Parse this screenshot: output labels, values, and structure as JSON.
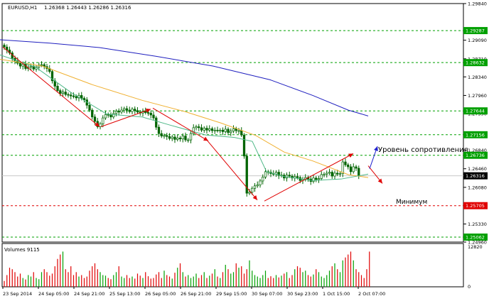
{
  "header": {
    "symbol": "EURUSD,H1",
    "ohlc": "1.26368 1.26443 1.26286 1.26316"
  },
  "volumes_label": "Volumes 9115",
  "annotations": {
    "resistance": "Уровень сопротивления",
    "minimum": "Минимум"
  },
  "colors": {
    "background": "#ffffff",
    "candle": "#006400",
    "ma_slow": "#1f1fbf",
    "ma_mid": "#f0b030",
    "ma_fast": "#4fb888",
    "level_line_green": "#00a000",
    "level_line_red": "#e00000",
    "trend_arrow": "#e00000",
    "up_arrow": "#2020d0",
    "volume_bar": "#e00000",
    "volume_bar_up": "#00a000",
    "price_badge_green": "#00a000",
    "price_badge_current": "#000000",
    "price_badge_red": "#e00000"
  },
  "chart_data": {
    "type": "line",
    "title": "EURUSD,H1",
    "price_axis": {
      "ylim": [
        1.2496,
        1.2984
      ],
      "ticks": [
        1.2984,
        1.29287,
        1.2909,
        1.2871,
        1.28632,
        1.2834,
        1.2796,
        1.27644,
        1.2759,
        1.27156,
        1.2684,
        1.26736,
        1.2646,
        1.26316,
        1.2608,
        1.25705,
        1.2533,
        1.25062,
        1.2496
      ]
    },
    "x_labels": [
      "23 Sep 2014",
      "24 Sep 05:00",
      "24 Sep 21:00",
      "25 Sep 13:00",
      "26 Sep 05:00",
      "26 Sep 21:00",
      "29 Sep 15:00",
      "30 Sep 07:00",
      "30 Sep 23:00",
      "1 Oct 15:00",
      "2 Oct 07:00"
    ],
    "horizontal_levels": [
      {
        "value": 1.29287,
        "label": "1.29287",
        "style": "green"
      },
      {
        "value": 1.28632,
        "label": "1.28632",
        "style": "green"
      },
      {
        "value": 1.27644,
        "label": "1.27644",
        "style": "green"
      },
      {
        "value": 1.27156,
        "label": "1.27156",
        "style": "green"
      },
      {
        "value": 1.26736,
        "label": "1.26736",
        "style": "green"
      },
      {
        "value": 1.26316,
        "label": "1.26316",
        "style": "current"
      },
      {
        "value": 1.25705,
        "label": "1.25705",
        "style": "red"
      },
      {
        "value": 1.25062,
        "label": "1.25062",
        "style": "green"
      }
    ],
    "close_series": [
      1.2895,
      1.2889,
      1.2883,
      1.2872,
      1.2867,
      1.2862,
      1.2856,
      1.286,
      1.2851,
      1.2854,
      1.2856,
      1.285,
      1.2854,
      1.2858,
      1.2859,
      1.2855,
      1.2851,
      1.2845,
      1.2826,
      1.2815,
      1.2806,
      1.28,
      1.2803,
      1.2798,
      1.2797,
      1.2795,
      1.2794,
      1.2791,
      1.2796,
      1.279,
      1.2787,
      1.2776,
      1.2766,
      1.2752,
      1.2743,
      1.2732,
      1.2738,
      1.275,
      1.2757,
      1.2756,
      1.2752,
      1.2759,
      1.2764,
      1.2762,
      1.2766,
      1.2769,
      1.2766,
      1.2763,
      1.2768,
      1.2765,
      1.2762,
      1.276,
      1.2764,
      1.2761,
      1.276,
      1.2756,
      1.275,
      1.2731,
      1.2718,
      1.2713,
      1.2714,
      1.2712,
      1.2708,
      1.2711,
      1.2706,
      1.2709,
      1.2707,
      1.2713,
      1.2705,
      1.2705,
      1.2718,
      1.273,
      1.2732,
      1.273,
      1.2725,
      1.2729,
      1.2725,
      1.2728,
      1.2724,
      1.2725,
      1.2724,
      1.2725,
      1.2722,
      1.2727,
      1.272,
      1.2723,
      1.2728,
      1.2724,
      1.2724,
      1.2715,
      1.2672,
      1.2596,
      1.2598,
      1.2606,
      1.2611,
      1.2613,
      1.2621,
      1.2629,
      1.264,
      1.2639,
      1.2636,
      1.2635,
      1.2639,
      1.2632,
      1.2633,
      1.2627,
      1.2633,
      1.2631,
      1.2627,
      1.263,
      1.2628,
      1.2622,
      1.2624,
      1.2628,
      1.2625,
      1.262,
      1.2627,
      1.2624,
      1.2626,
      1.2634,
      1.2635,
      1.2637,
      1.2639,
      1.2631,
      1.2637,
      1.2635,
      1.2636,
      1.266,
      1.2654,
      1.265,
      1.264,
      1.265,
      1.2647,
      1.2632
    ],
    "ma_slow": [
      [
        0,
        1.291
      ],
      [
        70,
        1.2903
      ],
      [
        140,
        1.2894
      ],
      [
        220,
        1.2876
      ],
      [
        300,
        1.2856
      ],
      [
        380,
        1.2828
      ],
      [
        440,
        1.2796
      ],
      [
        490,
        1.2766
      ],
      [
        518,
        1.2754
      ]
    ],
    "ma_mid": [
      [
        0,
        1.287
      ],
      [
        60,
        1.2856
      ],
      [
        130,
        1.2818
      ],
      [
        200,
        1.2786
      ],
      [
        260,
        1.2763
      ],
      [
        310,
        1.274
      ],
      [
        360,
        1.2714
      ],
      [
        400,
        1.268
      ],
      [
        440,
        1.2662
      ],
      [
        490,
        1.2634
      ],
      [
        518,
        1.2628
      ]
    ],
    "ma_fast": [
      [
        0,
        1.2879
      ],
      [
        50,
        1.2854
      ],
      [
        100,
        1.2802
      ],
      [
        150,
        1.2758
      ],
      [
        200,
        1.2752
      ],
      [
        240,
        1.2735
      ],
      [
        290,
        1.2715
      ],
      [
        330,
        1.271
      ],
      [
        355,
        1.2702
      ],
      [
        375,
        1.264
      ],
      [
        400,
        1.263
      ],
      [
        440,
        1.2622
      ],
      [
        480,
        1.2625
      ],
      [
        518,
        1.2635
      ]
    ],
    "trend_arrows": [
      {
        "from": [
          4,
          1.2895
        ],
        "to": [
          140,
          1.2732
        ],
        "direction": "down"
      },
      {
        "from": [
          142,
          1.2732
        ],
        "to": [
          212,
          1.2768
        ],
        "direction": "up"
      },
      {
        "from": [
          215,
          1.277
        ],
        "to": [
          293,
          1.2703
        ],
        "direction": "down"
      },
      {
        "from": [
          292,
          1.2703
        ],
        "to": [
          362,
          1.2582
        ],
        "direction": "down"
      },
      {
        "from": [
          372,
          1.258
        ],
        "to": [
          497,
          1.2677
        ],
        "direction": "up"
      },
      {
        "from": [
          518,
          1.2652
        ],
        "to": [
          538,
          1.2616
        ],
        "direction": "down"
      }
    ],
    "resistance_arrow": {
      "from": [
        520,
        1.2646
      ],
      "to": [
        531,
        1.2692
      ]
    },
    "volumes": {
      "max_label": "12820",
      "zero_label": "0",
      "max": 12820,
      "values": [
        2000,
        4000,
        6500,
        6000,
        5000,
        3500,
        4500,
        3000,
        2500,
        4000,
        3500,
        5000,
        3000,
        2600,
        5000,
        6000,
        5000,
        3800,
        4500,
        7000,
        9500,
        11000,
        12000,
        6000,
        5000,
        7000,
        4000,
        5000,
        3500,
        4000,
        3000,
        3500,
        5500,
        7000,
        8000,
        6000,
        5000,
        4000,
        3800,
        3000,
        2600,
        4000,
        5000,
        7000,
        3500,
        3000,
        4000,
        3000,
        3500,
        2800,
        4500,
        3800,
        3000,
        5000,
        3600,
        2800,
        3000,
        4200,
        5000,
        3000,
        5500,
        4000,
        3500,
        2800,
        4800,
        6500,
        8000,
        5000,
        3500,
        4000,
        3000,
        3500,
        4500,
        3000,
        4000,
        5000,
        3000,
        3800,
        4500,
        6000,
        3500,
        3000,
        5000,
        7500,
        6000,
        4500,
        5000,
        8000,
        6500,
        7000,
        4500,
        6000,
        9000,
        5500,
        4000,
        3500,
        3000,
        4000,
        5500,
        3000,
        3600,
        3000,
        4000,
        3200,
        3800,
        4500,
        5000,
        3000,
        4000,
        6000,
        7000,
        6500,
        5000,
        5500,
        4000,
        3500,
        4200,
        6000,
        5000,
        3500,
        3000,
        4000,
        5500,
        7000,
        8000,
        6000,
        5000,
        9000,
        10000,
        11000,
        12000,
        9000,
        6000,
        5000,
        4000,
        3000,
        6000,
        12000
      ]
    }
  }
}
